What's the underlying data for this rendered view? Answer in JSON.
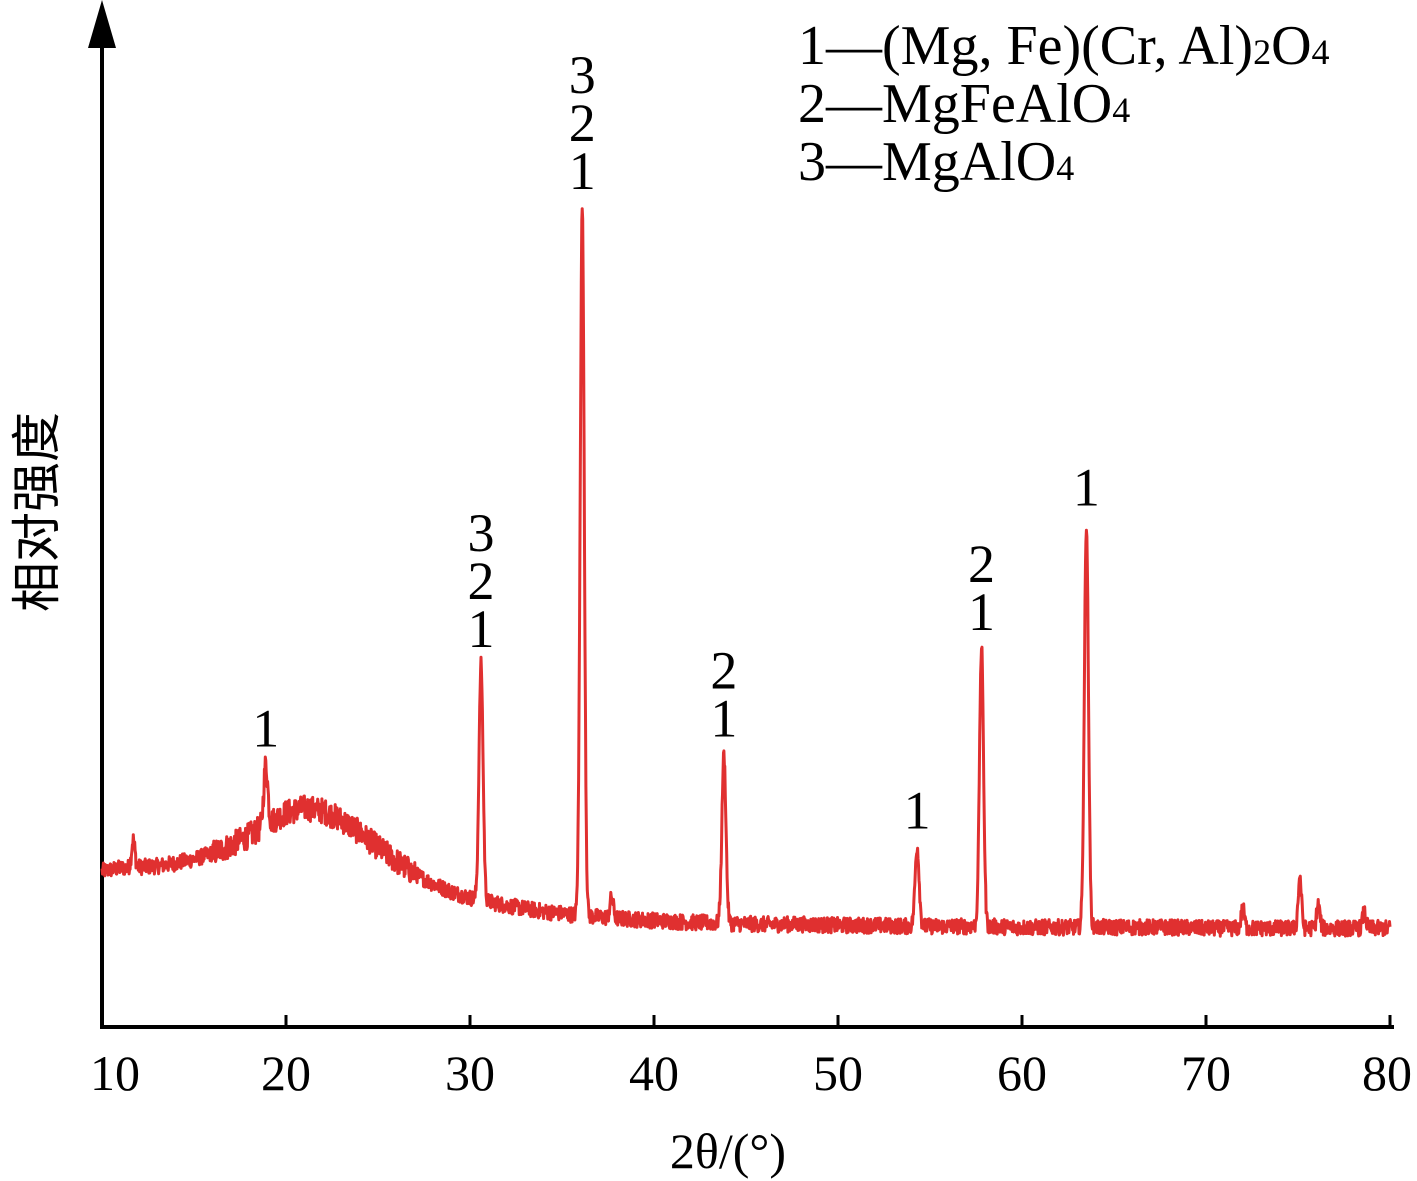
{
  "chart_data": {
    "type": "line",
    "title": "",
    "xlabel": "2θ/(°)",
    "ylabel": "相对强度",
    "xlim": [
      10,
      80
    ],
    "ylim": [
      0,
      100
    ],
    "xticks": [
      "10",
      "20",
      "30",
      "40",
      "50",
      "60",
      "70",
      "80"
    ],
    "grid": false,
    "legend_position": "top-right",
    "line_color": "#e03030",
    "legend": [
      {
        "marker": "1",
        "formula": [
          "(Mg, Fe)(Cr, Al)",
          "2",
          "O",
          "4"
        ]
      },
      {
        "marker": "2",
        "formula": [
          "MgFeAlO",
          "4"
        ]
      },
      {
        "marker": "3",
        "formula": [
          "MgAlO",
          "4"
        ]
      }
    ],
    "peaks": [
      {
        "x": 18.9,
        "y": 26.6,
        "labels": [
          "1"
        ]
      },
      {
        "x": 30.6,
        "y": 36.7,
        "labels": [
          "1",
          "2",
          "3"
        ]
      },
      {
        "x": 36.1,
        "y": 83.1,
        "labels": [
          "1",
          "2",
          "3"
        ]
      },
      {
        "x": 43.8,
        "y": 27.6,
        "labels": [
          "1",
          "2"
        ]
      },
      {
        "x": 54.3,
        "y": 18.3,
        "labels": [
          "1"
        ]
      },
      {
        "x": 57.8,
        "y": 38.4,
        "labels": [
          "1",
          "2"
        ]
      },
      {
        "x": 63.5,
        "y": 51.0,
        "labels": [
          "1"
        ]
      }
    ],
    "series": [
      {
        "x": [
          10,
          11,
          12,
          13,
          14,
          15,
          16,
          17,
          18,
          19,
          20,
          21,
          22,
          23,
          24,
          25,
          26,
          27,
          28,
          29,
          30,
          32,
          34,
          36,
          38,
          40,
          42,
          44,
          46,
          48,
          50,
          52,
          54,
          56,
          58,
          60,
          62,
          64,
          66,
          68,
          70,
          72,
          74,
          76,
          78,
          80
        ],
        "values": [
          15.8,
          16.1,
          16.2,
          16.3,
          16.6,
          17.0,
          17.6,
          18.4,
          19.4,
          20.6,
          21.7,
          22.2,
          21.9,
          21.0,
          19.7,
          18.2,
          16.8,
          15.5,
          14.5,
          13.7,
          13.1,
          12.3,
          11.7,
          11.3,
          11.0,
          10.8,
          10.6,
          10.5,
          10.4,
          10.4,
          10.3,
          10.3,
          10.2,
          10.2,
          10.2,
          10.1,
          10.1,
          10.1,
          10.1,
          10.1,
          10.0,
          10.0,
          10.0,
          10.0,
          10.0,
          10.0
        ]
      }
    ],
    "minor_peaks": [
      {
        "x": 11.7,
        "y": 19.0
      },
      {
        "x": 37.7,
        "y": 13.2
      },
      {
        "x": 72.0,
        "y": 12.0
      },
      {
        "x": 75.1,
        "y": 15.2
      },
      {
        "x": 76.1,
        "y": 12.4
      },
      {
        "x": 78.6,
        "y": 11.6
      }
    ]
  }
}
